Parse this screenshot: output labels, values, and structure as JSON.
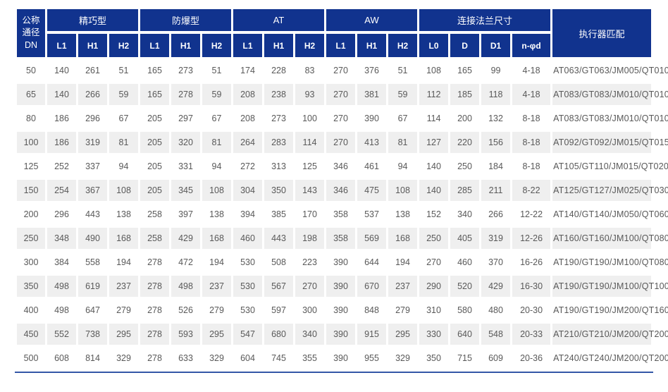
{
  "colors": {
    "header_bg": "#11338e",
    "header_text": "#ffffff",
    "stripe_bg": "#efefef",
    "cell_text": "#595959",
    "bottom_line": "#3457a7"
  },
  "chart_data": {
    "type": "table",
    "dn_header": "公称通径DN",
    "actuator_header": "执行器匹配",
    "groups": [
      {
        "id": "compact",
        "label": "精巧型",
        "columns": [
          "L1",
          "H1",
          "H2"
        ]
      },
      {
        "id": "explosion-proof",
        "label": "防爆型",
        "columns": [
          "L1",
          "H1",
          "H2"
        ]
      },
      {
        "id": "at",
        "label": "AT",
        "columns": [
          "L1",
          "H1",
          "H2"
        ]
      },
      {
        "id": "aw",
        "label": "AW",
        "columns": [
          "L1",
          "H1",
          "H2"
        ]
      },
      {
        "id": "flange",
        "label": "连接法兰尺寸",
        "columns": [
          "L0",
          "D",
          "D1",
          "n-φd"
        ]
      }
    ],
    "rows": [
      {
        "dn": "50",
        "values": [
          "140",
          "261",
          "51",
          "165",
          "273",
          "51",
          "174",
          "228",
          "83",
          "270",
          "376",
          "51",
          "108",
          "165",
          "99",
          "4-18"
        ],
        "actuator": "AT063/GT063/JM005/QT010"
      },
      {
        "dn": "65",
        "values": [
          "140",
          "266",
          "59",
          "165",
          "278",
          "59",
          "208",
          "238",
          "93",
          "270",
          "381",
          "59",
          "112",
          "185",
          "118",
          "4-18"
        ],
        "actuator": "AT083/GT083/JM010/QT010"
      },
      {
        "dn": "80",
        "values": [
          "186",
          "296",
          "67",
          "205",
          "297",
          "67",
          "208",
          "273",
          "100",
          "270",
          "390",
          "67",
          "114",
          "200",
          "132",
          "8-18"
        ],
        "actuator": "AT083/GT083/JM010/QT010"
      },
      {
        "dn": "100",
        "values": [
          "186",
          "319",
          "81",
          "205",
          "320",
          "81",
          "264",
          "283",
          "114",
          "270",
          "413",
          "81",
          "127",
          "220",
          "156",
          "8-18"
        ],
        "actuator": "AT092/GT092/JM015/QT015"
      },
      {
        "dn": "125",
        "values": [
          "252",
          "337",
          "94",
          "205",
          "331",
          "94",
          "272",
          "313",
          "125",
          "346",
          "461",
          "94",
          "140",
          "250",
          "184",
          "8-18"
        ],
        "actuator": "AT105/GT110/JM015/QT020"
      },
      {
        "dn": "150",
        "values": [
          "254",
          "367",
          "108",
          "205",
          "345",
          "108",
          "304",
          "350",
          "143",
          "346",
          "475",
          "108",
          "140",
          "285",
          "211",
          "8-22"
        ],
        "actuator": "AT125/GT127/JM025/QT030"
      },
      {
        "dn": "200",
        "values": [
          "296",
          "443",
          "138",
          "258",
          "397",
          "138",
          "394",
          "385",
          "170",
          "358",
          "537",
          "138",
          "152",
          "340",
          "266",
          "12-22"
        ],
        "actuator": "AT140/GT140/JM050/QT060"
      },
      {
        "dn": "250",
        "values": [
          "348",
          "490",
          "168",
          "258",
          "429",
          "168",
          "460",
          "443",
          "198",
          "358",
          "569",
          "168",
          "250",
          "405",
          "319",
          "12-26"
        ],
        "actuator": "AT160/GT160/JM100/QT080"
      },
      {
        "dn": "300",
        "values": [
          "384",
          "558",
          "194",
          "278",
          "472",
          "194",
          "530",
          "508",
          "223",
          "390",
          "644",
          "194",
          "270",
          "460",
          "370",
          "16-26"
        ],
        "actuator": "AT190/GT190/JM100/QT080"
      },
      {
        "dn": "350",
        "values": [
          "498",
          "619",
          "237",
          "278",
          "498",
          "237",
          "530",
          "567",
          "270",
          "390",
          "670",
          "237",
          "290",
          "520",
          "429",
          "16-30"
        ],
        "actuator": "AT190/GT190/JM100/QT100"
      },
      {
        "dn": "400",
        "values": [
          "498",
          "647",
          "279",
          "278",
          "526",
          "279",
          "530",
          "597",
          "300",
          "390",
          "848",
          "279",
          "310",
          "580",
          "480",
          "20-30"
        ],
        "actuator": "AT190/GT190/JM200/QT160"
      },
      {
        "dn": "450",
        "values": [
          "552",
          "738",
          "295",
          "278",
          "593",
          "295",
          "547",
          "680",
          "340",
          "390",
          "915",
          "295",
          "330",
          "640",
          "548",
          "20-33"
        ],
        "actuator": "AT210/GT210/JM200/QT200"
      },
      {
        "dn": "500",
        "values": [
          "608",
          "814",
          "329",
          "278",
          "633",
          "329",
          "604",
          "745",
          "355",
          "390",
          "955",
          "329",
          "350",
          "715",
          "609",
          "20-36"
        ],
        "actuator": "AT240/GT240/JM200/QT200"
      }
    ]
  }
}
